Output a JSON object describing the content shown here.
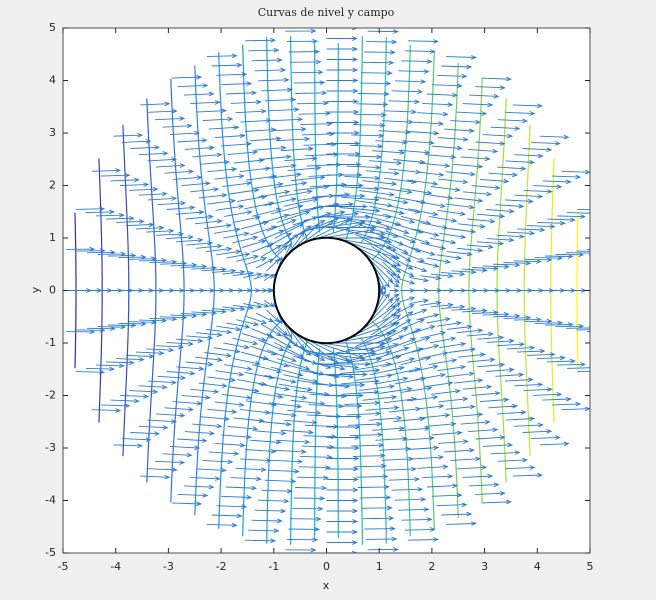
{
  "chart_data": {
    "type": "quiver",
    "title": "Curvas de nivel y campo",
    "x_label": "x",
    "y_label": "y",
    "xlim": [
      -5,
      5
    ],
    "ylim": [
      -5,
      5
    ],
    "xticks": [
      -5,
      -4,
      -3,
      -2,
      -1,
      0,
      1,
      2,
      3,
      4,
      5
    ],
    "yticks": [
      -5,
      -4,
      -3,
      -2,
      -1,
      0,
      1,
      2,
      3,
      4,
      5
    ],
    "obstacle": {
      "center": [
        0,
        0
      ],
      "radius": 1
    },
    "arrow_color": "#2b7bd0"
  }
}
